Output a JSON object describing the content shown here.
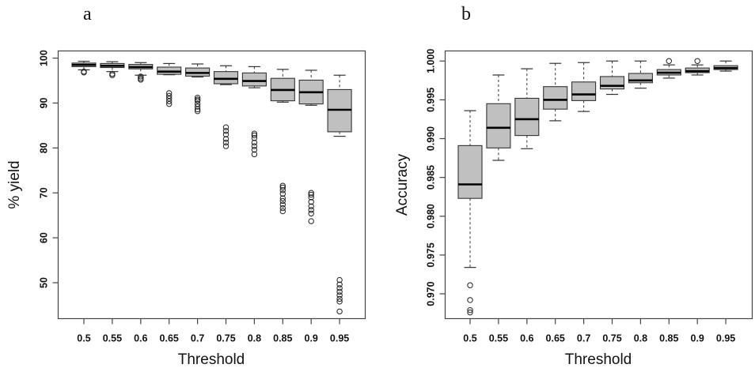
{
  "chart_data": [
    {
      "type": "box",
      "panel_label": "a",
      "title": "",
      "xlabel": "Threshold",
      "ylabel": "% yield",
      "ylim": [
        42,
        101.6
      ],
      "yticks": [
        50,
        60,
        70,
        80,
        90,
        100
      ],
      "ytick_labels": [
        "50",
        "60",
        "70",
        "80",
        "90",
        "100"
      ],
      "categories": [
        "0.5",
        "0.55",
        "0.6",
        "0.65",
        "0.7",
        "0.75",
        "0.8",
        "0.85",
        "0.9",
        "0.95"
      ],
      "grid": false,
      "box_fill": "#c0c0c0",
      "boxes": [
        {
          "whisker_high": 99.3,
          "q3": 98.9,
          "median": 98.5,
          "q1": 98.1,
          "whisker_low": 97.4,
          "outliers": [
            97.0,
            96.8
          ]
        },
        {
          "whisker_high": 99.2,
          "q3": 98.8,
          "median": 98.3,
          "q1": 97.9,
          "whisker_low": 97.0,
          "outliers": [
            96.5,
            96.2
          ]
        },
        {
          "whisker_high": 99.0,
          "q3": 98.6,
          "median": 98.0,
          "q1": 97.6,
          "whisker_low": 96.2,
          "outliers": [
            95.9,
            95.5,
            95.2
          ]
        },
        {
          "whisker_high": 98.8,
          "q3": 98.0,
          "median": 97.0,
          "q1": 96.4,
          "whisker_low": 96.3,
          "outliers": [
            92.2,
            91.6,
            91.0,
            90.4,
            89.8
          ]
        },
        {
          "whisker_high": 98.7,
          "q3": 97.8,
          "median": 96.7,
          "q1": 96.0,
          "whisker_low": 95.8,
          "outliers": [
            91.2,
            90.8,
            90.5,
            89.8,
            89.2,
            88.6,
            88.2
          ]
        },
        {
          "whisker_high": 98.3,
          "q3": 97.0,
          "median": 95.4,
          "q1": 94.3,
          "whisker_low": 94.1,
          "outliers": [
            84.6,
            83.8,
            83.0,
            82.0,
            81.2,
            80.4
          ]
        },
        {
          "whisker_high": 98.1,
          "q3": 96.7,
          "median": 94.9,
          "q1": 93.8,
          "whisker_low": 93.4,
          "outliers": [
            83.2,
            82.8,
            82.2,
            81.2,
            80.4,
            79.6,
            78.6
          ]
        },
        {
          "whisker_high": 97.5,
          "q3": 95.5,
          "median": 92.9,
          "q1": 90.5,
          "whisker_low": 90.2,
          "outliers": [
            71.6,
            71.2,
            70.6,
            69.8,
            68.8,
            68.2,
            67.4,
            66.6,
            65.9
          ]
        },
        {
          "whisker_high": 97.3,
          "q3": 95.1,
          "median": 92.4,
          "q1": 89.8,
          "whisker_low": 89.5,
          "outliers": [
            70.0,
            69.6,
            69.0,
            68.0,
            67.0,
            66.2,
            65.4,
            63.7
          ]
        },
        {
          "whisker_high": 96.2,
          "q3": 93.0,
          "median": 88.5,
          "q1": 83.6,
          "whisker_low": 82.6,
          "outliers": [
            50.6,
            49.6,
            48.8,
            48.0,
            47.2,
            46.4,
            45.8,
            43.6
          ]
        }
      ]
    },
    {
      "type": "box",
      "panel_label": "b",
      "title": "",
      "xlabel": "Threshold",
      "ylabel": "Accuracy",
      "ylim": [
        0.9668,
        1.0013
      ],
      "yticks": [
        0.97,
        0.975,
        0.98,
        0.985,
        0.99,
        0.995,
        1.0
      ],
      "ytick_labels": [
        "0.970",
        "0.975",
        "0.980",
        "0.985",
        "0.990",
        "0.995",
        "1.000"
      ],
      "categories": [
        "0.5",
        "0.55",
        "0.6",
        "0.65",
        "0.7",
        "0.75",
        "0.8",
        "0.85",
        "0.9",
        "0.95"
      ],
      "grid": false,
      "box_fill": "#c0c0c0",
      "boxes": [
        {
          "whisker_high": 0.9936,
          "q3": 0.9891,
          "median": 0.9841,
          "q1": 0.9823,
          "whisker_low": 0.9734,
          "outliers": [
            0.9711,
            0.9692,
            0.9679,
            0.9676
          ]
        },
        {
          "whisker_high": 0.9982,
          "q3": 0.9945,
          "median": 0.9914,
          "q1": 0.9888,
          "whisker_low": 0.9872,
          "outliers": []
        },
        {
          "whisker_high": 0.999,
          "q3": 0.9952,
          "median": 0.9925,
          "q1": 0.9904,
          "whisker_low": 0.9887,
          "outliers": []
        },
        {
          "whisker_high": 0.9997,
          "q3": 0.9967,
          "median": 0.995,
          "q1": 0.9938,
          "whisker_low": 0.9923,
          "outliers": []
        },
        {
          "whisker_high": 0.9998,
          "q3": 0.9973,
          "median": 0.9957,
          "q1": 0.9949,
          "whisker_low": 0.9935,
          "outliers": []
        },
        {
          "whisker_high": 1.0,
          "q3": 0.998,
          "median": 0.9968,
          "q1": 0.9964,
          "whisker_low": 0.9957,
          "outliers": []
        },
        {
          "whisker_high": 1.0,
          "q3": 0.9984,
          "median": 0.9975,
          "q1": 0.9972,
          "whisker_low": 0.9965,
          "outliers": []
        },
        {
          "whisker_high": 0.9995,
          "q3": 0.9989,
          "median": 0.9985,
          "q1": 0.9982,
          "whisker_low": 0.9978,
          "outliers": [
            1.0
          ]
        },
        {
          "whisker_high": 0.9995,
          "q3": 0.9991,
          "median": 0.9987,
          "q1": 0.9985,
          "whisker_low": 0.9982,
          "outliers": [
            1.0
          ]
        },
        {
          "whisker_high": 1.0,
          "q3": 0.9994,
          "median": 0.9991,
          "q1": 0.9989,
          "whisker_low": 0.9987,
          "outliers": []
        }
      ]
    }
  ]
}
